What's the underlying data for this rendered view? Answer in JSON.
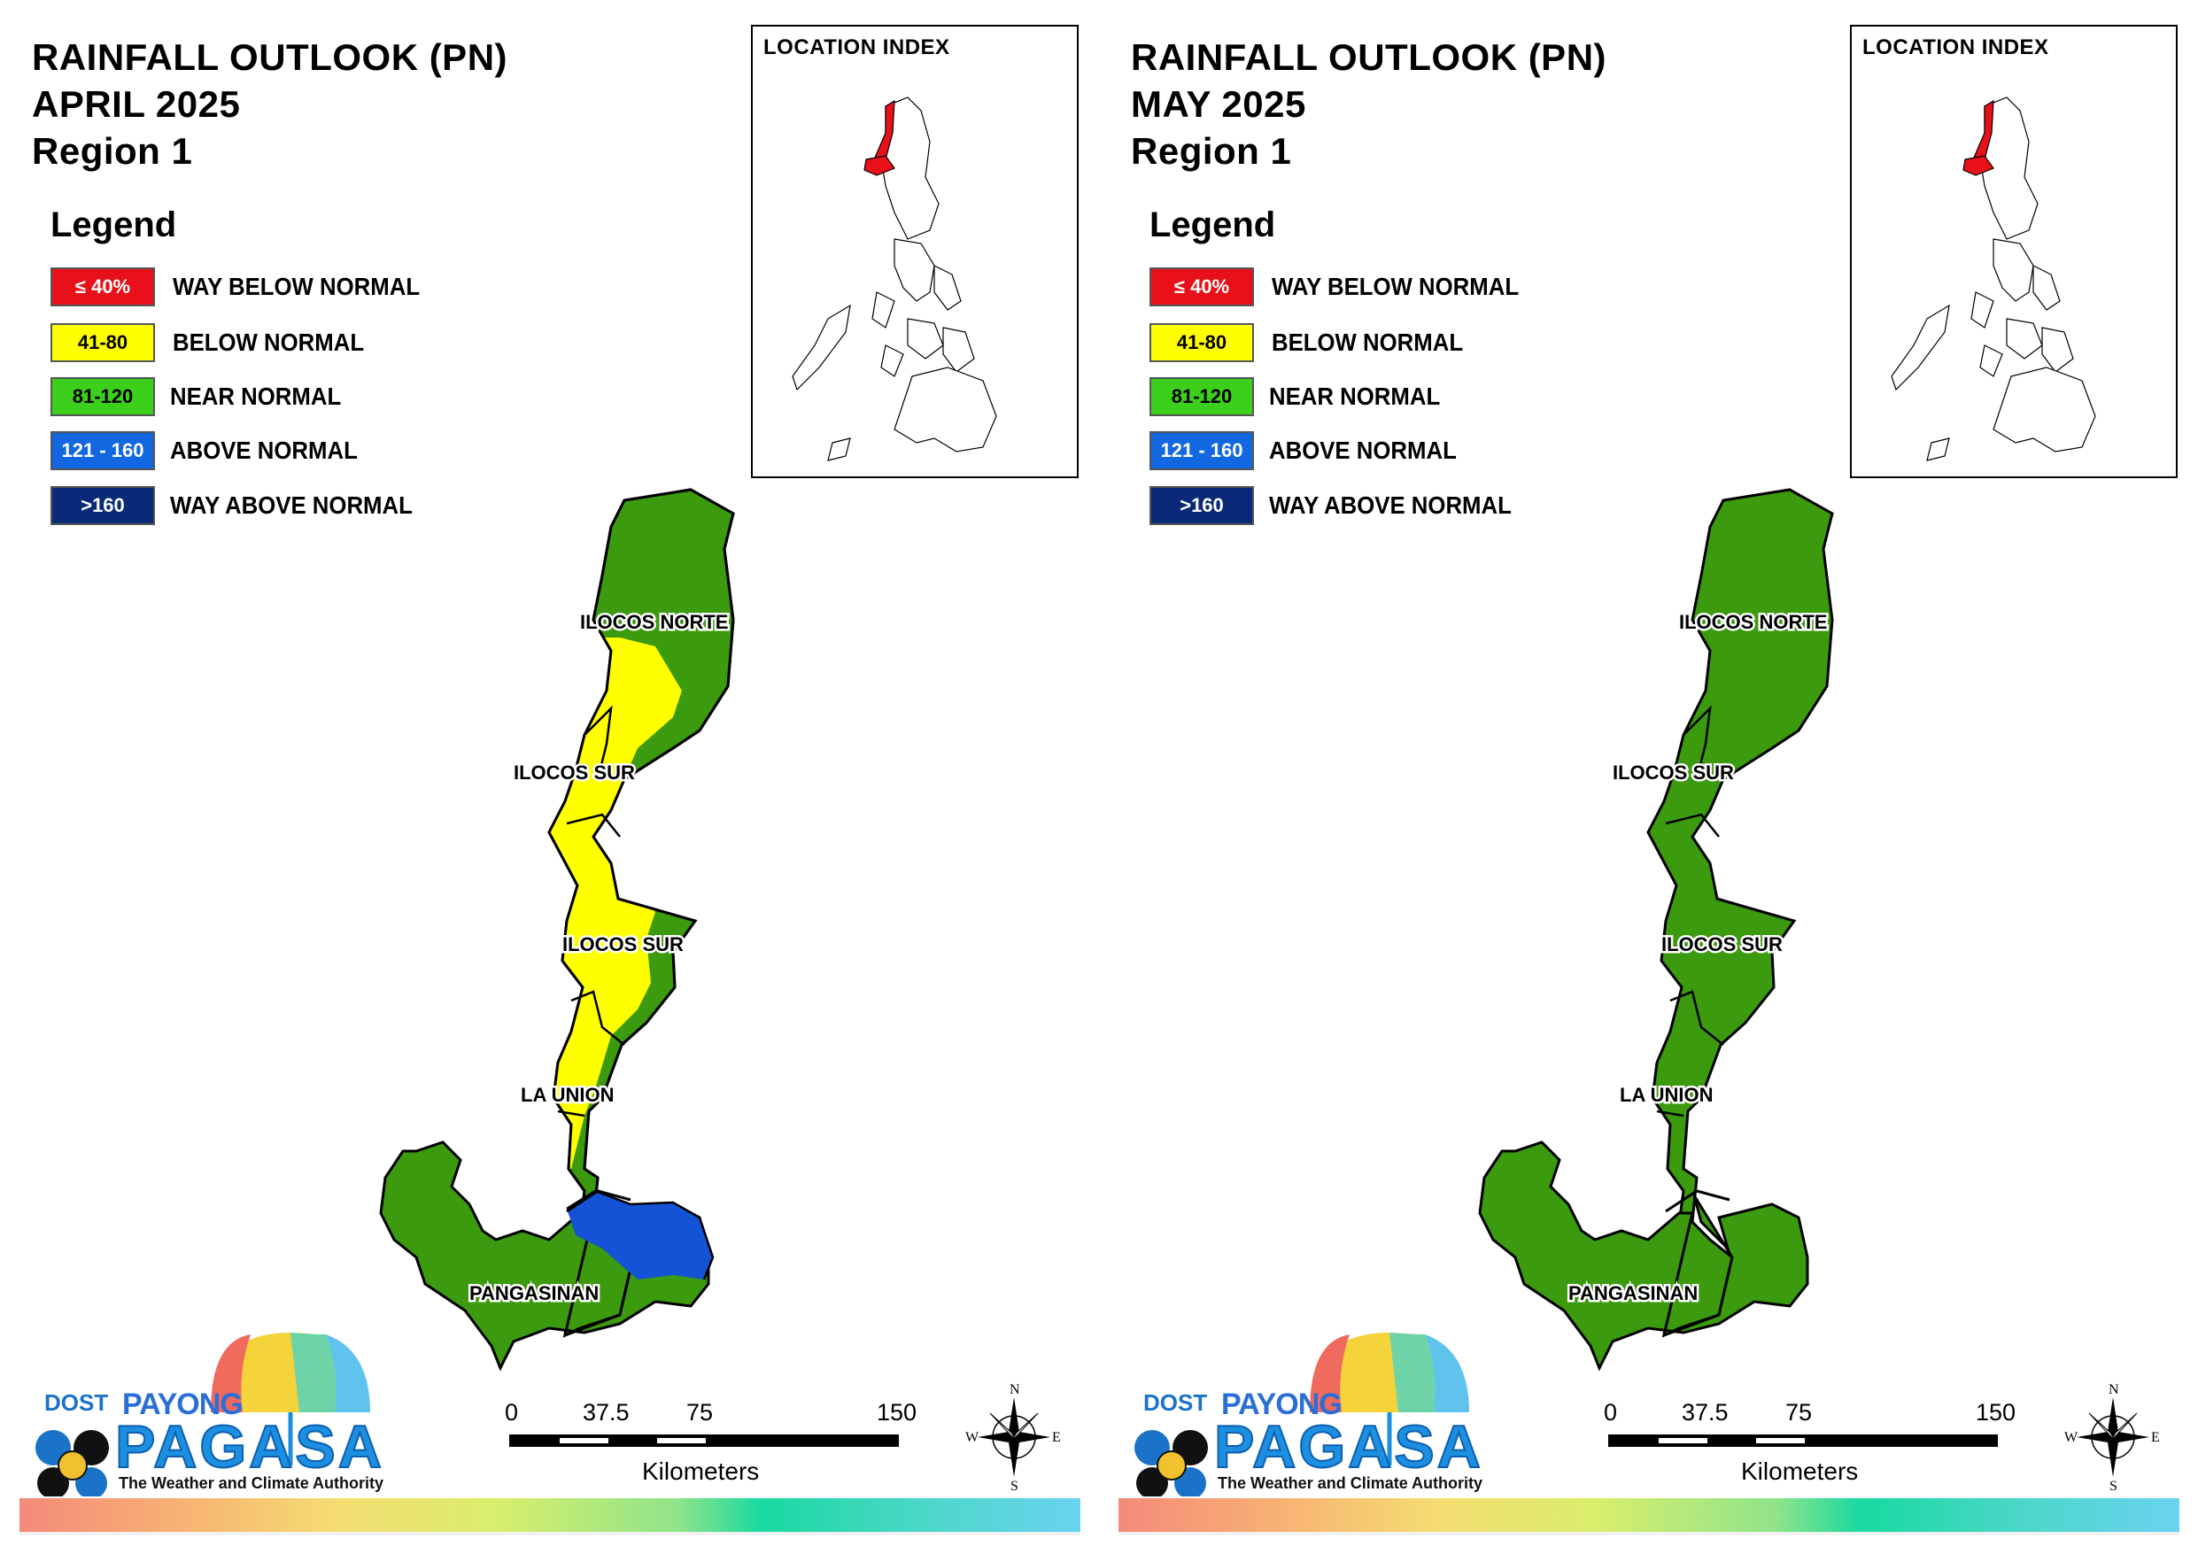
{
  "panels": [
    {
      "title_line1": "RAINFALL OUTLOOK (PN)",
      "title_line2": "APRIL 2025",
      "title_line3": "Region 1",
      "provinces": [
        "ILOCOS NORTE",
        "ILOCOS SUR",
        "ILOCOS SUR",
        "LA UNION",
        "PANGASINAN"
      ]
    },
    {
      "title_line1": "RAINFALL OUTLOOK (PN)",
      "title_line2": "MAY 2025",
      "title_line3": "Region 1",
      "provinces": [
        "ILOCOS NORTE",
        "ILOCOS SUR",
        "ILOCOS SUR",
        "LA UNION",
        "PANGASINAN"
      ]
    }
  ],
  "legend": {
    "title": "Legend",
    "items": [
      {
        "range": "≤ 40%",
        "label": "WAY BELOW NORMAL",
        "color": "#e8111a",
        "text_color": "#ffffff"
      },
      {
        "range": "41-80",
        "label": "BELOW NORMAL",
        "color": "#ffff00",
        "text_color": "#000000"
      },
      {
        "range": "81-120",
        "label": "NEAR NORMAL",
        "color": "#3cd01c",
        "text_color": "#000000"
      },
      {
        "range": "121 - 160",
        "label": "ABOVE NORMAL",
        "color": "#1367e0",
        "text_color": "#ffffff"
      },
      {
        "range": ">160",
        "label": "WAY ABOVE NORMAL",
        "color": "#0a2a78",
        "text_color": "#ffffff"
      }
    ]
  },
  "location_index": {
    "title": "LOCATION INDEX",
    "highlight_color": "#e8111a"
  },
  "map_colors": {
    "near_normal": "#3b9a0d",
    "below_normal": "#ffff00",
    "above_normal": "#1553d6"
  },
  "scale_bar": {
    "ticks": [
      "0",
      "37.5",
      "75",
      "150"
    ],
    "unit": "Kilometers"
  },
  "compass": {
    "n": "N",
    "s": "S",
    "e": "E",
    "w": "W"
  },
  "logo": {
    "agency": "DOST",
    "line1": "PAYONG",
    "line2": "PAGASA",
    "tagline": "The Weather and Climate Authority"
  }
}
